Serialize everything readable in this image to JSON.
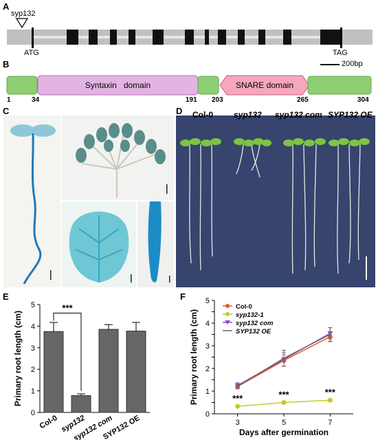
{
  "panels": {
    "A": "A",
    "B": "B",
    "C": "C",
    "D": "D",
    "E": "E",
    "F": "F"
  },
  "gene_model": {
    "insertion_label": "syp132",
    "start_label": "ATG",
    "stop_label": "TAG",
    "scale_label": "200bp"
  },
  "protein": {
    "domains": [
      {
        "name": "",
        "color": "#8fcf73"
      },
      {
        "name": "Syntaxin   domain",
        "color": "#e3b4e3"
      },
      {
        "name": "",
        "color": "#8fcf73"
      },
      {
        "name": "SNARE domain",
        "color": "#f7a7bb"
      },
      {
        "name": "",
        "color": "#8fcf73"
      }
    ],
    "positions": [
      "1",
      "34",
      "191",
      "203",
      "265",
      "304"
    ]
  },
  "seedling_labels": [
    "Col-0",
    "syp132",
    "syp132 com",
    "SYP132 OE"
  ],
  "chart_data": [
    {
      "type": "bar",
      "panel": "E",
      "ylabel": "Primary root length (cm)",
      "categories": [
        "Col-0",
        "syp132",
        "syp132 com",
        "SYP132 OE"
      ],
      "values": [
        3.75,
        0.78,
        3.85,
        3.77
      ],
      "errors": [
        0.42,
        0.08,
        0.22,
        0.4
      ],
      "yticks": [
        "0",
        "1",
        "2",
        "3",
        "4",
        "5"
      ],
      "ylim": [
        0,
        5
      ],
      "annotation": "***",
      "bar_color": "#666666"
    },
    {
      "type": "line",
      "panel": "F",
      "xlabel": "Days after germination",
      "ylabel": "Primary root length (cm)",
      "x": [
        3,
        5,
        7
      ],
      "xticks": [
        "3",
        "5",
        "7"
      ],
      "yticks": [
        "0",
        "0.5",
        "1",
        "1.5",
        "2",
        "2.5",
        "3",
        "3.5",
        "4",
        "4.5",
        "5"
      ],
      "ylim": [
        0,
        5
      ],
      "series": [
        {
          "name": "Col-0",
          "color": "#e8542b",
          "marker": "circle",
          "values": [
            1.2,
            2.35,
            3.4
          ],
          "errors": [
            0.1,
            0.25,
            0.22
          ]
        },
        {
          "name": "syp132-1",
          "color": "#c8c82a",
          "marker": "circle",
          "values": [
            0.33,
            0.5,
            0.6
          ],
          "errors": [
            0.03,
            0.04,
            0.06
          ]
        },
        {
          "name": "syp132 com",
          "color": "#8a4fc9",
          "marker": "triangle",
          "values": [
            1.25,
            2.4,
            3.55
          ],
          "errors": [
            0.12,
            0.3,
            0.25
          ]
        },
        {
          "name": "SYP132 OE",
          "color": "#666666",
          "marker": "line",
          "values": [
            1.22,
            2.45,
            3.5
          ],
          "errors": [
            0.1,
            0.35,
            0.3
          ]
        }
      ],
      "annotations": [
        "***",
        "***",
        "***"
      ]
    }
  ]
}
